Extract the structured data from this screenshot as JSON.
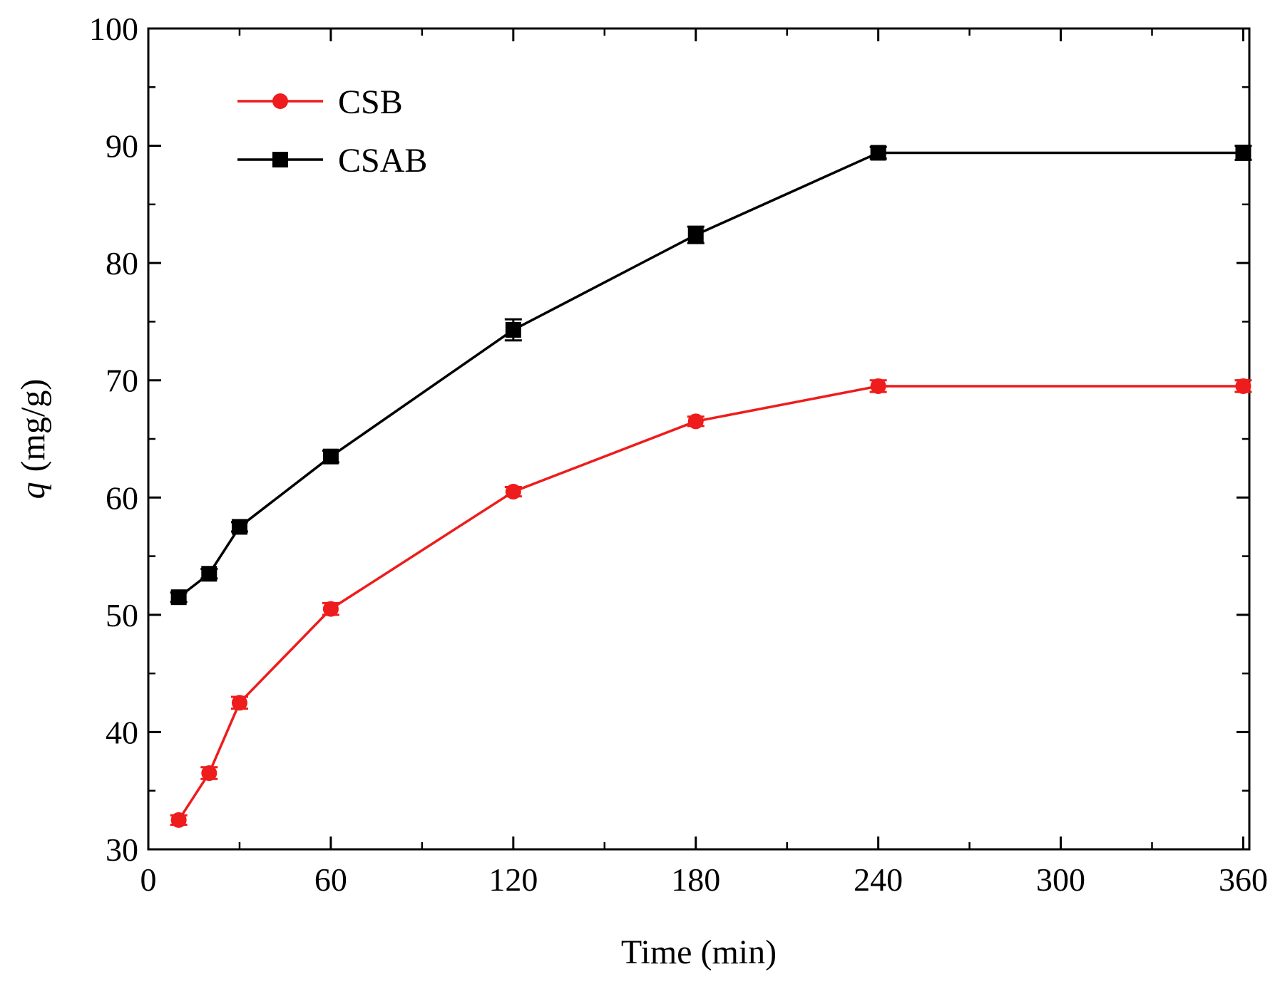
{
  "chart_data": {
    "type": "line",
    "title": "",
    "xlabel": "Time (min)",
    "ylabel_symbol": "q",
    "ylabel_unit": "(mg/g)",
    "xlim": [
      0,
      362
    ],
    "ylim": [
      30,
      100
    ],
    "xticks": [
      0,
      60,
      120,
      180,
      240,
      300,
      360
    ],
    "xtick_labels": [
      "0",
      "60",
      "120",
      "180",
      "240",
      "300",
      "360"
    ],
    "yticks": [
      30,
      40,
      50,
      60,
      70,
      80,
      90,
      100
    ],
    "ytick_labels": [
      "30",
      "40",
      "50",
      "60",
      "70",
      "80",
      "90",
      "100"
    ],
    "x_minor_step": 30,
    "y_minor_step": 5,
    "grid": false,
    "legend_position": "top-left",
    "series": [
      {
        "name": "CSAB",
        "color": "#000000",
        "marker": "square",
        "x": [
          10,
          20,
          30,
          60,
          120,
          180,
          240,
          360
        ],
        "values": [
          51.5,
          53.5,
          57.5,
          63.5,
          74.3,
          82.4,
          89.4,
          89.4
        ],
        "errors": [
          0.4,
          0.4,
          0.4,
          0.5,
          0.9,
          0.7,
          0.5,
          0.6
        ]
      },
      {
        "name": "CSB",
        "color": "#ee1c1c",
        "marker": "circle",
        "x": [
          10,
          20,
          30,
          60,
          120,
          180,
          240,
          360
        ],
        "values": [
          32.5,
          36.5,
          42.5,
          50.5,
          60.5,
          66.5,
          69.5,
          69.5
        ],
        "errors": [
          0.4,
          0.5,
          0.5,
          0.5,
          0.4,
          0.4,
          0.5,
          0.5
        ]
      }
    ],
    "legend_order": [
      "CSB",
      "CSAB"
    ]
  }
}
